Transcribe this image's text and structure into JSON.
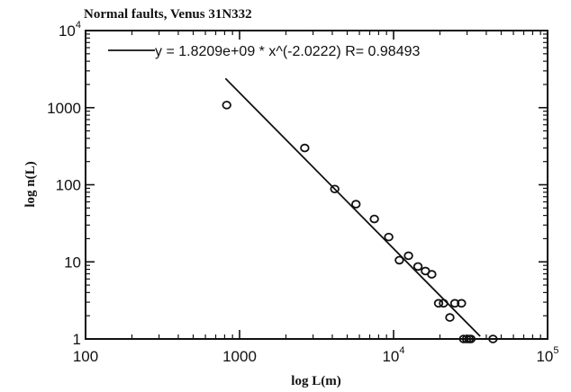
{
  "chart_data": {
    "type": "scatter",
    "title": "Normal faults, Venus 31N332",
    "xlabel": "log L(m)",
    "ylabel": "log  n(L)",
    "x_scale": "log",
    "y_scale": "log",
    "xlim": [
      100,
      100000
    ],
    "ylim": [
      1,
      10000
    ],
    "x_ticks": [
      {
        "value": 100,
        "mant": "100",
        "exp": ""
      },
      {
        "value": 1000,
        "mant": "1000",
        "exp": ""
      },
      {
        "value": 10000,
        "mant": "10",
        "exp": "4"
      },
      {
        "value": 100000,
        "mant": "10",
        "exp": "5"
      }
    ],
    "y_ticks": [
      {
        "value": 1,
        "mant": "1",
        "exp": ""
      },
      {
        "value": 10,
        "mant": "10",
        "exp": ""
      },
      {
        "value": 100,
        "mant": "100",
        "exp": ""
      },
      {
        "value": 1000,
        "mant": "1000",
        "exp": ""
      },
      {
        "value": 10000,
        "mant": "10",
        "exp": "4"
      }
    ],
    "grid": false,
    "legend": {
      "placement": "top",
      "text": "y = 1.8209e+09 * x^(-2.0222) R= 0.98493"
    },
    "fit": {
      "a": 1820900000,
      "b": -2.0222,
      "x_range": [
        810,
        36500
      ]
    },
    "points": [
      {
        "x": 825,
        "y": 1080
      },
      {
        "x": 2650,
        "y": 300
      },
      {
        "x": 4150,
        "y": 88
      },
      {
        "x": 5700,
        "y": 56
      },
      {
        "x": 7500,
        "y": 36
      },
      {
        "x": 9300,
        "y": 21
      },
      {
        "x": 10900,
        "y": 10.5
      },
      {
        "x": 12500,
        "y": 12
      },
      {
        "x": 14400,
        "y": 8.7
      },
      {
        "x": 16100,
        "y": 7.6
      },
      {
        "x": 17700,
        "y": 6.9
      },
      {
        "x": 19600,
        "y": 2.9
      },
      {
        "x": 21100,
        "y": 2.9
      },
      {
        "x": 23200,
        "y": 1.9
      },
      {
        "x": 25000,
        "y": 2.9
      },
      {
        "x": 27600,
        "y": 2.9
      },
      {
        "x": 28500,
        "y": 1
      },
      {
        "x": 29800,
        "y": 1
      },
      {
        "x": 30900,
        "y": 1
      },
      {
        "x": 31800,
        "y": 1
      },
      {
        "x": 44200,
        "y": 1
      }
    ]
  }
}
